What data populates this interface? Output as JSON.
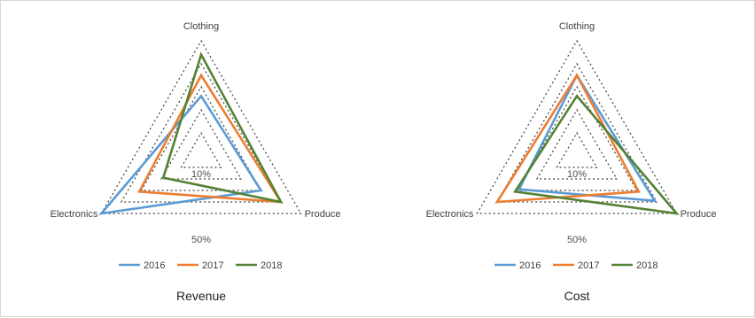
{
  "chart_data": [
    {
      "type": "radar",
      "title": "Revenue",
      "axes": [
        "Clothing",
        "Produce",
        "Electronics"
      ],
      "ring_labels": [
        "10%",
        "50%"
      ],
      "grid": "dotted triangles",
      "legend_position": "bottom",
      "series": [
        {
          "name": "2016",
          "color": "#5b9bd5",
          "values": [
            0.52,
            0.6,
            1.0
          ]
        },
        {
          "name": "2017",
          "color": "#ed7d31",
          "values": [
            0.7,
            0.8,
            0.62
          ]
        },
        {
          "name": "2018",
          "color": "#548235",
          "values": [
            0.88,
            0.8,
            0.38
          ]
        }
      ]
    },
    {
      "type": "radar",
      "title": "Cost",
      "axes": [
        "Clothing",
        "Produce",
        "Electronics"
      ],
      "ring_labels": [
        "10%",
        "50%"
      ],
      "grid": "dotted triangles",
      "legend_position": "bottom",
      "series": [
        {
          "name": "2016",
          "color": "#5b9bd5",
          "values": [
            0.7,
            0.78,
            0.58
          ]
        },
        {
          "name": "2017",
          "color": "#ed7d31",
          "values": [
            0.7,
            0.62,
            0.8
          ]
        },
        {
          "name": "2018",
          "color": "#548235",
          "values": [
            0.52,
            1.0,
            0.62
          ]
        }
      ]
    }
  ]
}
